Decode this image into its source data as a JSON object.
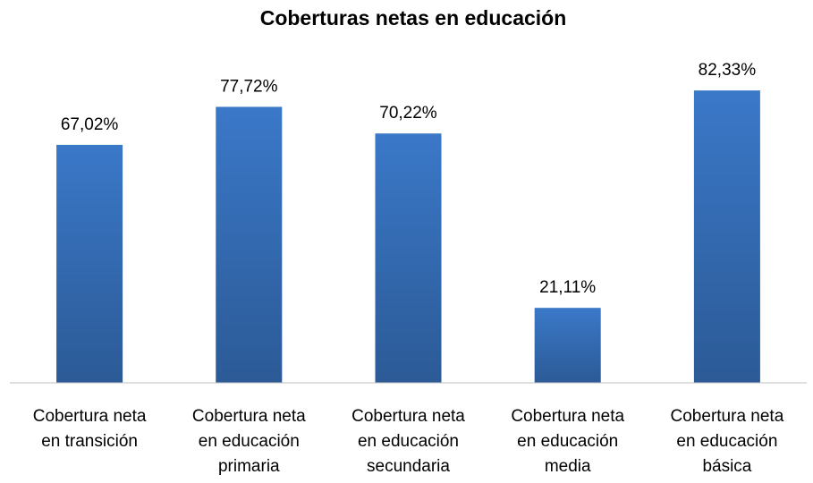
{
  "chart_data": {
    "type": "bar",
    "title": "Coberturas netas en educación",
    "categories": [
      "Cobertura neta en transición",
      "Cobertura neta en educación primaria",
      "Cobertura neta en educación secundaria",
      "Cobertura neta en educación media",
      "Cobertura neta en educación básica"
    ],
    "values": [
      67.02,
      77.72,
      70.22,
      21.11,
      82.33
    ],
    "value_labels": [
      "67,02%",
      "77,72%",
      "70,22%",
      "21,11%",
      "82,33%"
    ],
    "color": "#3a78c8"
  }
}
